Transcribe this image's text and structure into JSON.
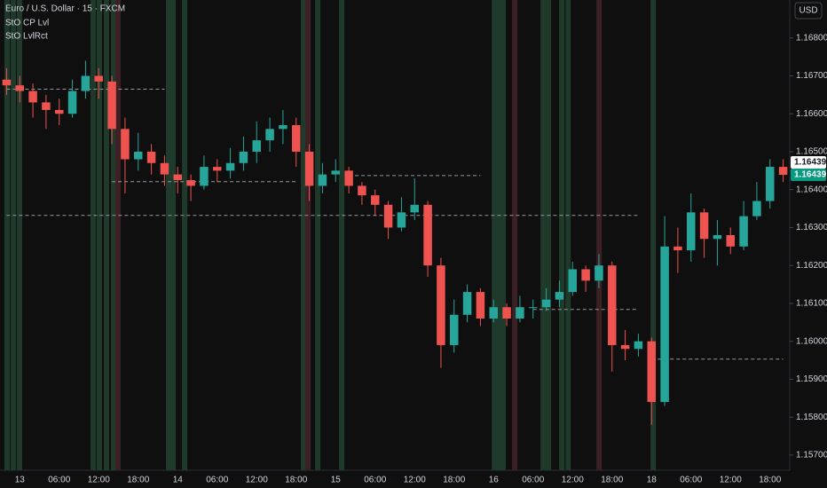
{
  "chart_data": {
    "type": "candlestick",
    "title": "Euro / U.S. Dollar · 15 · FXCM",
    "indicators": [
      "StO CP Lvl",
      "StO LvlRct"
    ],
    "currency": "USD",
    "categories": [
      null,
      "13",
      null,
      null,
      "06:00",
      null,
      null,
      "12:00",
      null,
      null,
      "18:00",
      null,
      null,
      "14",
      null,
      null,
      "06:00",
      null,
      null,
      "12:00",
      null,
      null,
      "18:00",
      null,
      null,
      "15",
      null,
      null,
      "06:00",
      null,
      null,
      "12:00",
      null,
      null,
      "18:00",
      null,
      null,
      "16",
      null,
      null,
      "06:00",
      null,
      null,
      "12:00",
      null,
      null,
      "18:00",
      null,
      null,
      "18",
      null,
      null,
      "06:00",
      null,
      null,
      "12:00",
      null,
      null,
      "18:00",
      null
    ],
    "open": [
      1.1669,
      1.16675,
      1.1666,
      1.1663,
      1.1661,
      1.166,
      1.1666,
      1.167,
      1.16685,
      1.1656,
      1.1648,
      1.165,
      1.1647,
      1.1644,
      1.16425,
      1.1641,
      1.1646,
      1.1645,
      1.1647,
      1.165,
      1.1653,
      1.1656,
      1.1657,
      1.165,
      1.1641,
      1.1644,
      1.1645,
      1.1641,
      1.16385,
      1.1636,
      1.163,
      1.1634,
      1.1636,
      1.162,
      1.1599,
      1.1607,
      1.1613,
      1.1606,
      1.1609,
      1.1606,
      1.1609,
      1.1609,
      1.1611,
      1.1613,
      1.1619,
      1.1616,
      1.162,
      1.1599,
      1.1598,
      1.16,
      1.1584,
      1.1625,
      1.1624,
      1.1634,
      1.1627,
      1.1628,
      1.1625,
      1.1633,
      1.1637,
      1.1646
    ],
    "high": [
      1.1672,
      1.167,
      1.1668,
      1.1665,
      1.1664,
      1.1669,
      1.1674,
      1.1672,
      1.167,
      1.1659,
      1.1655,
      1.1652,
      1.1649,
      1.1646,
      1.1644,
      1.1649,
      1.1648,
      1.1651,
      1.1654,
      1.1658,
      1.1659,
      1.1661,
      1.1659,
      1.1652,
      1.1647,
      1.1648,
      1.1646,
      1.1642,
      1.164,
      1.1637,
      1.1638,
      1.1643,
      1.1637,
      1.1622,
      1.1611,
      1.1615,
      1.1614,
      1.1611,
      1.161,
      1.1612,
      1.1611,
      1.1614,
      1.1616,
      1.1621,
      1.162,
      1.1623,
      1.1621,
      1.1603,
      1.1602,
      1.1601,
      1.1633,
      1.163,
      1.1639,
      1.1635,
      1.1632,
      1.163,
      1.1637,
      1.1642,
      1.1648,
      1.1648
    ],
    "low": [
      1.1665,
      1.1663,
      1.1659,
      1.1656,
      1.1657,
      1.1659,
      1.1664,
      1.1664,
      1.1652,
      1.1639,
      1.1645,
      1.1644,
      1.1641,
      1.1639,
      1.1637,
      1.164,
      1.1642,
      1.1643,
      1.1645,
      1.1647,
      1.165,
      1.1652,
      1.1646,
      1.1637,
      1.1639,
      1.1642,
      1.1639,
      1.1636,
      1.1633,
      1.1627,
      1.1629,
      1.1632,
      1.1617,
      1.1593,
      1.1597,
      1.1605,
      1.1604,
      1.1605,
      1.1604,
      1.1605,
      1.1606,
      1.1608,
      1.1609,
      1.1612,
      1.1613,
      1.1614,
      1.1592,
      1.1595,
      1.1596,
      1.1578,
      1.1583,
      1.1618,
      1.1621,
      1.1622,
      1.162,
      1.1623,
      1.1624,
      1.1632,
      1.1635,
      1.1642
    ],
    "close": [
      1.16675,
      1.1666,
      1.1663,
      1.1661,
      1.166,
      1.1666,
      1.167,
      1.16685,
      1.1656,
      1.1648,
      1.165,
      1.1647,
      1.1644,
      1.16425,
      1.1641,
      1.1646,
      1.1645,
      1.1647,
      1.165,
      1.1653,
      1.1656,
      1.1657,
      1.165,
      1.1641,
      1.1644,
      1.1645,
      1.1641,
      1.16385,
      1.1636,
      1.163,
      1.1634,
      1.1636,
      1.162,
      1.1599,
      1.1607,
      1.1613,
      1.1606,
      1.1609,
      1.1606,
      1.1609,
      1.1609,
      1.1611,
      1.1613,
      1.1619,
      1.1616,
      1.162,
      1.1599,
      1.1598,
      1.16,
      1.1584,
      1.1625,
      1.1624,
      1.1634,
      1.1627,
      1.1628,
      1.1625,
      1.1633,
      1.1637,
      1.1646,
      1.16439
    ],
    "up_color": "#26a69a",
    "down_color": "#ef5350",
    "ylim": [
      1.1566,
      1.169
    ],
    "yticks": [
      {
        "value": 1.157,
        "label": "1.15700"
      },
      {
        "value": 1.158,
        "label": "1.15800"
      },
      {
        "value": 1.159,
        "label": "1.15900"
      },
      {
        "value": 1.16,
        "label": "1.16000"
      },
      {
        "value": 1.161,
        "label": "1.16100"
      },
      {
        "value": 1.162,
        "label": "1.16200"
      },
      {
        "value": 1.163,
        "label": "1.16300"
      },
      {
        "value": 1.164,
        "label": "1.16400"
      },
      {
        "value": 1.165,
        "label": "1.16500"
      },
      {
        "value": 1.166,
        "label": "1.16600"
      },
      {
        "value": 1.167,
        "label": "1.16700"
      },
      {
        "value": 1.168,
        "label": "1.16800"
      }
    ],
    "price_labels": [
      {
        "value": 1.16439,
        "label": "1.16439",
        "color": "#ffffff"
      },
      {
        "value": 1.16439,
        "label": "1.16439",
        "color": "#089981"
      }
    ],
    "levels": [
      {
        "value": 1.16665,
        "from": 0,
        "to": 12
      },
      {
        "value": 1.16421,
        "from": 8,
        "to": 22
      },
      {
        "value": 1.16437,
        "from": 26,
        "to": 36
      },
      {
        "value": 1.16332,
        "from": 0,
        "to": 48
      },
      {
        "value": 1.16084,
        "from": 40,
        "to": 48
      },
      {
        "value": 1.15953,
        "from": 49,
        "to": 59
      }
    ],
    "signals": {
      "up_color": "#1f3a2b",
      "down_color": "#3d2024",
      "up": [
        0.04,
        0.51,
        0.98,
        6.58,
        7.05,
        7.59,
        8.13,
        12.31,
        12.65,
        13.53,
        22.56,
        23.64,
        25.46,
        37.06,
        37.4,
        37.73,
        40.77,
        41.17,
        42.18,
        42.66,
        49.13
      ],
      "down": [
        8.47,
        22.9,
        38.61,
        45.02
      ]
    },
    "grid": false
  }
}
